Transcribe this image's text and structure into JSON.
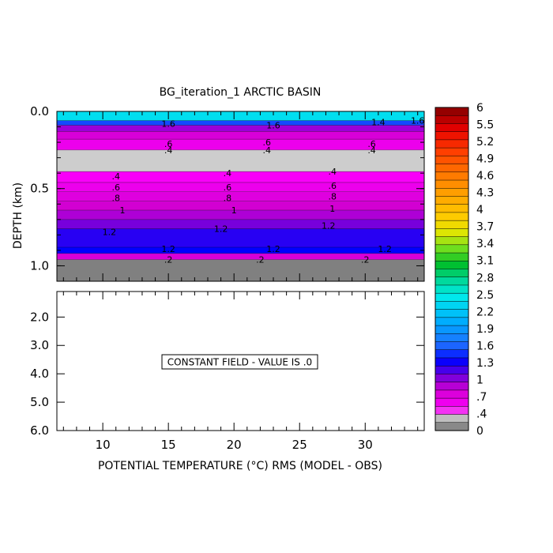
{
  "chart_data": {
    "type": "contour",
    "title": "BG_iteration_1 ARCTIC BASIN",
    "xlabel": "POTENTIAL TEMPERATURE (°C) RMS (MODEL - OBS)",
    "ylabel": "DEPTH (km)",
    "x_ticks": [
      "10",
      "15",
      "20",
      "25",
      "30"
    ],
    "xlim": [
      6.5,
      34.5
    ],
    "upper_panel": {
      "ylim": [
        0.0,
        1.1
      ],
      "y_ticks": [
        "0.0",
        "0.5",
        "1.0"
      ],
      "bands": [
        {
          "depth_top": 0.0,
          "depth_bottom": 0.06,
          "value": 2.4
        },
        {
          "depth_top": 0.06,
          "depth_bottom": 0.09,
          "value": 1.5
        },
        {
          "depth_top": 0.09,
          "depth_bottom": 0.13,
          "value": 0.9
        },
        {
          "depth_top": 0.13,
          "depth_bottom": 0.18,
          "value": 0.7
        },
        {
          "depth_top": 0.18,
          "depth_bottom": 0.25,
          "value": 0.55
        },
        {
          "depth_top": 0.25,
          "depth_bottom": 0.39,
          "value": 0.3
        },
        {
          "depth_top": 0.39,
          "depth_bottom": 0.46,
          "value": 0.45
        },
        {
          "depth_top": 0.46,
          "depth_bottom": 0.52,
          "value": 0.55
        },
        {
          "depth_top": 0.52,
          "depth_bottom": 0.58,
          "value": 0.65
        },
        {
          "depth_top": 0.58,
          "depth_bottom": 0.64,
          "value": 0.75
        },
        {
          "depth_top": 0.64,
          "depth_bottom": 0.7,
          "value": 0.85
        },
        {
          "depth_top": 0.7,
          "depth_bottom": 0.76,
          "value": 1.0
        },
        {
          "depth_top": 0.76,
          "depth_bottom": 0.88,
          "value": 1.2
        },
        {
          "depth_top": 0.88,
          "depth_bottom": 0.92,
          "value": 1.3
        },
        {
          "depth_top": 0.92,
          "depth_bottom": 0.96,
          "value": 0.7
        },
        {
          "depth_top": 0.96,
          "depth_bottom": 1.1,
          "value": 0.05
        }
      ],
      "contour_labels": [
        {
          "text": ".4",
          "x": 11.0,
          "depth": 0.42
        },
        {
          "text": ".6",
          "x": 11.0,
          "depth": 0.49
        },
        {
          "text": ".8",
          "x": 11.0,
          "depth": 0.56
        },
        {
          "text": "1",
          "x": 11.5,
          "depth": 0.64
        },
        {
          "text": "1.2",
          "x": 10.5,
          "depth": 0.78
        },
        {
          "text": ".4",
          "x": 19.5,
          "depth": 0.4
        },
        {
          "text": ".6",
          "x": 19.5,
          "depth": 0.49
        },
        {
          "text": ".8",
          "x": 19.5,
          "depth": 0.56
        },
        {
          "text": "1",
          "x": 20.0,
          "depth": 0.64
        },
        {
          "text": "1.2",
          "x": 19.0,
          "depth": 0.76
        },
        {
          "text": ".4",
          "x": 27.5,
          "depth": 0.39
        },
        {
          "text": ".6",
          "x": 27.5,
          "depth": 0.48
        },
        {
          "text": ".8",
          "x": 27.5,
          "depth": 0.55
        },
        {
          "text": "1",
          "x": 27.5,
          "depth": 0.63
        },
        {
          "text": "1.2",
          "x": 27.2,
          "depth": 0.74
        },
        {
          "text": ".4",
          "x": 15.0,
          "depth": 0.25
        },
        {
          "text": ".6",
          "x": 15.0,
          "depth": 0.21
        },
        {
          "text": "1.6",
          "x": 15.0,
          "depth": 0.08
        },
        {
          "text": ".4",
          "x": 22.5,
          "depth": 0.25
        },
        {
          "text": ".6",
          "x": 22.5,
          "depth": 0.2
        },
        {
          "text": "1.6",
          "x": 23.0,
          "depth": 0.09
        },
        {
          "text": ".4",
          "x": 30.5,
          "depth": 0.25
        },
        {
          "text": ".6",
          "x": 30.5,
          "depth": 0.21
        },
        {
          "text": "1.4",
          "x": 31.0,
          "depth": 0.07
        },
        {
          "text": "1.6",
          "x": 34.0,
          "depth": 0.06
        },
        {
          "text": "1.2",
          "x": 15.0,
          "depth": 0.89
        },
        {
          "text": "1.2",
          "x": 23.0,
          "depth": 0.89
        },
        {
          "text": "1.2",
          "x": 31.5,
          "depth": 0.89
        },
        {
          "text": ".2",
          "x": 15.0,
          "depth": 0.96
        },
        {
          "text": ".2",
          "x": 22.0,
          "depth": 0.96
        },
        {
          "text": ".2",
          "x": 30.0,
          "depth": 0.96
        }
      ]
    },
    "lower_panel": {
      "ylim": [
        1.1,
        6.0
      ],
      "y_ticks": [
        "2.0",
        "3.0",
        "4.0",
        "5.0",
        "6.0"
      ],
      "annotation": "CONSTANT FIELD - VALUE IS .0"
    },
    "colorbar": {
      "min": 0,
      "max": 6,
      "levels": 40,
      "tick_labels": [
        "6",
        "5.5",
        "5.2",
        "4.9",
        "4.6",
        "4.3",
        "4",
        "3.7",
        "3.4",
        "3.1",
        "2.8",
        "2.5",
        "2.2",
        "1.9",
        "1.6",
        "1.3",
        "1",
        ".7",
        ".4",
        "0"
      ]
    }
  }
}
